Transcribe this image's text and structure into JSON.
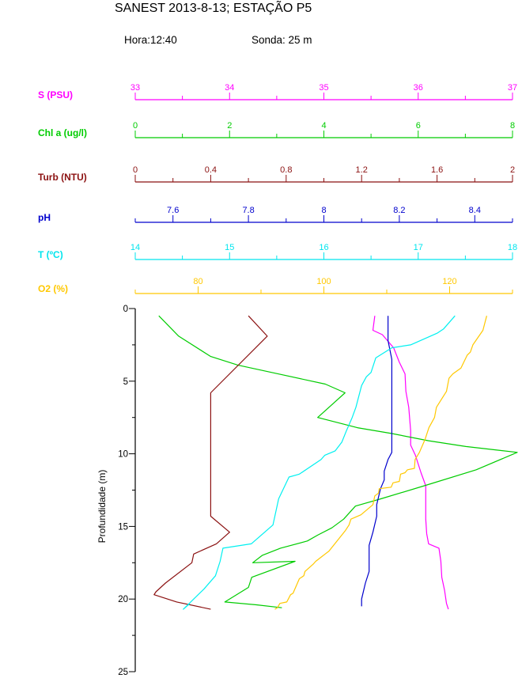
{
  "header": {
    "title": "SANEST 2013-8-13; ESTAÇÃO P5",
    "hora_label": "Hora:12:40",
    "sonda_label": "Sonda: 25 m"
  },
  "chart_data": {
    "type": "line",
    "subtype": "ctd-depth-profile",
    "title": "SANEST 2013-8-13; ESTAÇÃO P5",
    "ylabel": "Profundidade (m)",
    "grid": false,
    "legend_position": "stacked-top-axes",
    "depth_axis": {
      "label": "Profundidade (m)",
      "min": 0,
      "max": 25,
      "major_ticks": [
        0,
        5,
        10,
        15,
        20,
        25
      ],
      "minor_ticks": [
        2.5,
        7.5,
        12.5,
        17.5,
        22.5
      ]
    },
    "axes": [
      {
        "id": "s_psu",
        "label": "S (PSU)",
        "color": "#FF00FF",
        "min": 33,
        "max": 37,
        "major_ticks": [
          33,
          34,
          35,
          36,
          37
        ],
        "minor_ticks": [
          33.5,
          34.5,
          35.5,
          36.5
        ]
      },
      {
        "id": "chl_a",
        "label": "Chl a (ug/l)",
        "color": "#00CC00",
        "min": 0,
        "max": 8,
        "major_ticks": [
          0,
          2,
          4,
          6,
          8
        ],
        "minor_ticks": [
          1,
          3,
          5,
          7
        ]
      },
      {
        "id": "turb",
        "label": "Turb (NTU)",
        "color": "#8B1111",
        "min": 0,
        "max": 2,
        "major_ticks": [
          0,
          0.4,
          0.8,
          1.2,
          1.6,
          2
        ],
        "minor_ticks": [
          0.2,
          0.6,
          1.0,
          1.4,
          1.8
        ]
      },
      {
        "id": "ph",
        "label": "pH",
        "color": "#0000CD",
        "min": 7.5,
        "max": 8.5,
        "major_ticks": [
          7.6,
          7.8,
          8,
          8.2,
          8.4
        ],
        "minor_ticks": [
          7.7,
          7.9,
          8.1,
          8.3
        ]
      },
      {
        "id": "t",
        "label": "T (ºC)",
        "color": "#00E5EE",
        "min": 14,
        "max": 18,
        "major_ticks": [
          14,
          15,
          16,
          17,
          18
        ],
        "minor_ticks": [
          14.5,
          15.5,
          16.5,
          17.5
        ]
      },
      {
        "id": "o2",
        "label": "O2 (%)",
        "color": "#FFC800",
        "min": 70,
        "max": 130,
        "major_ticks": [
          80,
          100,
          120
        ],
        "minor_ticks": [
          90,
          110
        ]
      }
    ],
    "series": [
      {
        "name": "Salinity",
        "axis": "s_psu",
        "color": "#FF00FF",
        "points": [
          [
            35.54,
            0.5
          ],
          [
            35.52,
            1.5
          ],
          [
            35.62,
            1.8
          ],
          [
            35.74,
            2.7
          ],
          [
            35.8,
            3.7
          ],
          [
            35.86,
            4.5
          ],
          [
            35.87,
            5.7
          ],
          [
            35.9,
            6.8
          ],
          [
            35.92,
            8.4
          ],
          [
            35.92,
            9.4
          ],
          [
            35.97,
            10.1
          ],
          [
            36.03,
            11.3
          ],
          [
            36.08,
            12.2
          ],
          [
            36.08,
            13.2
          ],
          [
            36.08,
            14.5
          ],
          [
            36.09,
            15.5
          ],
          [
            36.11,
            16.2
          ],
          [
            36.22,
            16.5
          ],
          [
            36.24,
            17.4
          ],
          [
            36.25,
            18.5
          ],
          [
            36.28,
            19.4
          ],
          [
            36.3,
            20.3
          ],
          [
            36.32,
            20.7
          ]
        ]
      },
      {
        "name": "Chlorophyll a",
        "axis": "chl_a",
        "color": "#00CC00",
        "points": [
          [
            0.5,
            0.5
          ],
          [
            0.92,
            1.9
          ],
          [
            1.6,
            3.3
          ],
          [
            2.18,
            3.9
          ],
          [
            3.03,
            4.5
          ],
          [
            4.03,
            5.2
          ],
          [
            4.45,
            5.8
          ],
          [
            3.87,
            7.5
          ],
          [
            4.71,
            8.2
          ],
          [
            5.43,
            8.6
          ],
          [
            6.22,
            9.1
          ],
          [
            7.01,
            9.5
          ],
          [
            8.1,
            9.9
          ],
          [
            7.23,
            11.1
          ],
          [
            6.13,
            12.2
          ],
          [
            5.21,
            13.1
          ],
          [
            4.67,
            13.6
          ],
          [
            4.42,
            14.5
          ],
          [
            4.17,
            15.1
          ],
          [
            3.87,
            15.6
          ],
          [
            3.65,
            16.0
          ],
          [
            3.08,
            16.5
          ],
          [
            2.69,
            17.0
          ],
          [
            2.49,
            17.5
          ],
          [
            3.39,
            17.4
          ],
          [
            2.47,
            18.5
          ],
          [
            2.4,
            19.2
          ],
          [
            1.9,
            20.2
          ],
          [
            2.57,
            20.4
          ],
          [
            3.11,
            20.6
          ]
        ]
      },
      {
        "name": "Turbidity",
        "axis": "turb",
        "color": "#8B1111",
        "points": [
          [
            0.6,
            0.5
          ],
          [
            0.7,
            1.9
          ],
          [
            0.4,
            5.8
          ],
          [
            0.4,
            14.3
          ],
          [
            0.5,
            15.4
          ],
          [
            0.43,
            16.2
          ],
          [
            0.31,
            16.9
          ],
          [
            0.3,
            17.5
          ],
          [
            0.16,
            18.9
          ],
          [
            0.11,
            19.5
          ],
          [
            0.1,
            19.7
          ],
          [
            0.22,
            20.2
          ],
          [
            0.4,
            20.7
          ]
        ]
      },
      {
        "name": "pH",
        "axis": "ph",
        "color": "#0000CD",
        "points": [
          [
            8.17,
            0.5
          ],
          [
            8.17,
            2.2
          ],
          [
            8.18,
            3.5
          ],
          [
            8.18,
            5.5
          ],
          [
            8.18,
            8.4
          ],
          [
            8.18,
            9.9
          ],
          [
            8.17,
            10.4
          ],
          [
            8.16,
            11.2
          ],
          [
            8.16,
            11.8
          ],
          [
            8.15,
            12.4
          ],
          [
            8.14,
            13.5
          ],
          [
            8.14,
            14.3
          ],
          [
            8.13,
            15.4
          ],
          [
            8.12,
            16.3
          ],
          [
            8.12,
            18.1
          ],
          [
            8.11,
            18.9
          ],
          [
            8.1,
            20.0
          ],
          [
            8.1,
            20.5
          ]
        ]
      },
      {
        "name": "Temperature",
        "axis": "t",
        "color": "#00F0F0",
        "points": [
          [
            17.39,
            0.5
          ],
          [
            17.27,
            1.4
          ],
          [
            17.2,
            1.7
          ],
          [
            17.06,
            2.1
          ],
          [
            16.92,
            2.5
          ],
          [
            16.72,
            2.7
          ],
          [
            16.55,
            3.4
          ],
          [
            16.5,
            4.4
          ],
          [
            16.45,
            4.7
          ],
          [
            16.4,
            5.3
          ],
          [
            16.34,
            6.8
          ],
          [
            16.3,
            7.5
          ],
          [
            16.24,
            8.4
          ],
          [
            16.19,
            9.2
          ],
          [
            16.12,
            9.8
          ],
          [
            16.01,
            10.1
          ],
          [
            15.97,
            10.4
          ],
          [
            15.74,
            11.4
          ],
          [
            15.63,
            11.6
          ],
          [
            15.52,
            13.1
          ],
          [
            15.46,
            14.9
          ],
          [
            15.23,
            16.2
          ],
          [
            14.93,
            16.5
          ],
          [
            14.9,
            17.4
          ],
          [
            14.85,
            18.4
          ],
          [
            14.73,
            19.3
          ],
          [
            14.62,
            20.0
          ],
          [
            14.51,
            20.7
          ],
          [
            14.58,
            20.3
          ]
        ]
      },
      {
        "name": "Oxygen saturation",
        "axis": "o2",
        "color": "#FFC800",
        "points": [
          [
            125.9,
            0.5
          ],
          [
            125.3,
            1.5
          ],
          [
            123.7,
            2.5
          ],
          [
            123.3,
            3.0
          ],
          [
            122.8,
            3.2
          ],
          [
            121.8,
            4.1
          ],
          [
            120.5,
            4.5
          ],
          [
            119.9,
            4.8
          ],
          [
            119.5,
            5.7
          ],
          [
            117.9,
            6.8
          ],
          [
            117.6,
            7.5
          ],
          [
            116.7,
            8.2
          ],
          [
            116.1,
            9.0
          ],
          [
            115.2,
            9.9
          ],
          [
            114.5,
            10.4
          ],
          [
            114.4,
            11.0
          ],
          [
            113.3,
            11.1
          ],
          [
            112.9,
            11.3
          ],
          [
            112.2,
            11.4
          ],
          [
            112.0,
            11.9
          ],
          [
            111.0,
            12.0
          ],
          [
            110.7,
            12.3
          ],
          [
            108.8,
            12.4
          ],
          [
            108.7,
            12.7
          ],
          [
            108.1,
            12.9
          ],
          [
            107.8,
            13.5
          ],
          [
            105.9,
            14.2
          ],
          [
            104.3,
            14.5
          ],
          [
            104.0,
            14.9
          ],
          [
            103.4,
            15.3
          ],
          [
            102.1,
            16.0
          ],
          [
            100.8,
            16.7
          ],
          [
            100.2,
            16.9
          ],
          [
            99.6,
            17.1
          ],
          [
            98.7,
            17.4
          ],
          [
            98.3,
            17.6
          ],
          [
            97.0,
            18.1
          ],
          [
            96.8,
            18.4
          ],
          [
            96.1,
            18.6
          ],
          [
            95.8,
            18.9
          ],
          [
            95.1,
            19.6
          ],
          [
            94.7,
            19.7
          ],
          [
            94.1,
            20.2
          ],
          [
            93.0,
            20.3
          ],
          [
            92.6,
            20.6
          ],
          [
            92.2,
            20.7
          ]
        ]
      }
    ]
  }
}
